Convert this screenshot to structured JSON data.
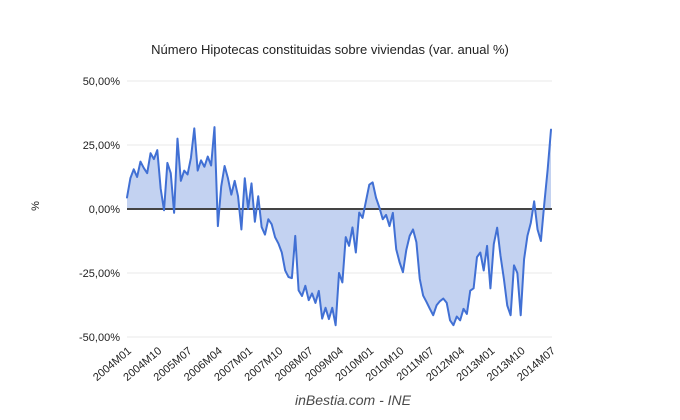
{
  "chart": {
    "title": "Número Hipotecas constituidas sobre viviendas (var. anual %)",
    "y_axis_title": "%",
    "footer": "inBestia.com - INE"
  },
  "chart_data": {
    "type": "area",
    "title": "Número Hipotecas constituidas sobre viviendas (var. anual %)",
    "xlabel": "",
    "ylabel": "%",
    "ylim": [
      -50,
      50
    ],
    "grid": true,
    "legend": "none",
    "x_start": "2004M01",
    "x_frequency": "monthly",
    "y_ticks": [
      50,
      25,
      0,
      -25,
      -50
    ],
    "y_tick_labels": [
      "50,00%",
      "25,00%",
      "0,00%",
      "-25,00%",
      "-50,00%"
    ],
    "x_tick_labels": [
      "2004M01",
      "2004M10",
      "2005M07",
      "2006M04",
      "2007M01",
      "2007M10",
      "2008M07",
      "2009M04",
      "2010M01",
      "2010M10",
      "2011M07",
      "2012M04",
      "2013M01",
      "2013M10",
      "2014M07"
    ],
    "x_tick_month_indices": [
      0,
      9,
      18,
      27,
      36,
      45,
      54,
      63,
      72,
      81,
      90,
      99,
      108,
      117,
      126
    ],
    "series": [
      {
        "name": "Hipotecas constituidas sobre viviendas (var. anual %)",
        "values": [
          4.5,
          12,
          15.5,
          12.5,
          18.5,
          16,
          14,
          21.8,
          19.5,
          23,
          8,
          -0.5,
          18,
          14,
          -1.5,
          27.5,
          11,
          15,
          13.5,
          20,
          31.5,
          15,
          19,
          16.5,
          20.5,
          17,
          32,
          -6.7,
          8.8,
          16.8,
          12,
          5.6,
          11,
          5,
          -8,
          12,
          0,
          10,
          -5,
          5,
          -7,
          -10,
          -4,
          -6,
          -11,
          -13.5,
          -17,
          -24,
          -26.6,
          -27,
          -10.5,
          -31.8,
          -34,
          -30,
          -35.6,
          -33,
          -36.7,
          -32,
          -42.8,
          -38.6,
          -43,
          -38.6,
          -45.4,
          -25,
          -28.7,
          -11,
          -14.4,
          -7.2,
          -17,
          -1.4,
          -3.5,
          3,
          9.5,
          10.4,
          4.4,
          0.6,
          -4,
          -2.3,
          -6.7,
          -1.5,
          -15.7,
          -20.8,
          -24.7,
          -16,
          -10.5,
          -8,
          -13,
          -27.3,
          -33.8,
          -36.3,
          -39,
          -41.5,
          -37.6,
          -36,
          -35,
          -36.6,
          -43.5,
          -45.4,
          -42,
          -43.5,
          -39,
          -41,
          -31.9,
          -31,
          -18.8,
          -17,
          -24,
          -14.4,
          -31,
          -13.7,
          -7.3,
          -18.3,
          -27.3,
          -37.7,
          -41.5,
          -22,
          -25,
          -41.5,
          -19.6,
          -10.5,
          -5.4,
          3,
          -8,
          -12.5,
          2,
          15.3,
          31
        ]
      }
    ],
    "colors": {
      "line": "#4170d4",
      "fill": "#c3d2f1",
      "zero_line": "#444444",
      "gridline": "#e9e9e9",
      "axis_text": "#222222"
    }
  }
}
